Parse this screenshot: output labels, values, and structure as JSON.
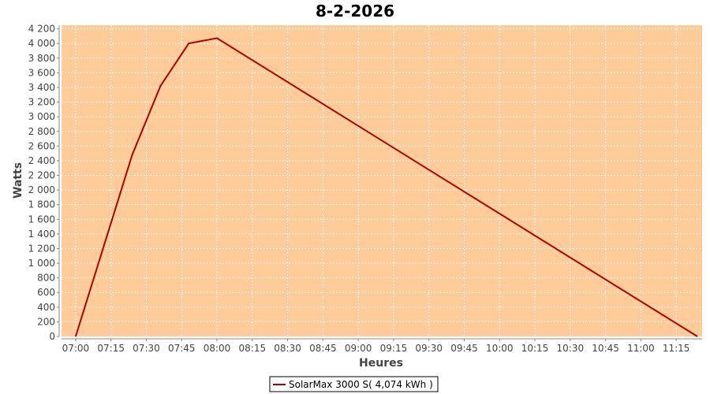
{
  "chart_data": {
    "type": "line",
    "title": "8-2-2026",
    "xlabel": "Heures",
    "ylabel": "Watts",
    "xlim": [
      "06:54",
      "11:26"
    ],
    "ylim": [
      0,
      4250
    ],
    "x_ticks": [
      "07:00",
      "07:15",
      "07:30",
      "07:45",
      "08:00",
      "08:15",
      "08:30",
      "08:45",
      "09:00",
      "09:15",
      "09:30",
      "09:45",
      "10:00",
      "10:15",
      "10:30",
      "10:45",
      "11:00",
      "11:15"
    ],
    "y_ticks": [
      0,
      200,
      400,
      600,
      800,
      1000,
      1200,
      1400,
      1600,
      1800,
      2000,
      2200,
      2400,
      2600,
      2800,
      3000,
      3200,
      3400,
      3600,
      3800,
      4000,
      4200
    ],
    "y_tick_labels": [
      "0",
      "200",
      "400",
      "600",
      "800",
      "1 000",
      "1 200",
      "1 400",
      "1 600",
      "1 800",
      "2 000",
      "2 200",
      "2 400",
      "2 600",
      "2 800",
      "3 000",
      "3 200",
      "3 400",
      "3 600",
      "3 800",
      "4 000",
      "4 200"
    ],
    "grid": true,
    "legend_position": "bottom",
    "colors": {
      "plot_background": "#ffcc99",
      "series_line": "#b00000",
      "gridline": "#ffffff"
    },
    "series": [
      {
        "name": "SolarMax 3000 S( 4,074 kWh )",
        "x": [
          "07:00",
          "07:24",
          "07:36",
          "07:48",
          "08:00",
          "11:24"
        ],
        "y": [
          0,
          2480,
          3420,
          4000,
          4074,
          0
        ]
      }
    ]
  }
}
